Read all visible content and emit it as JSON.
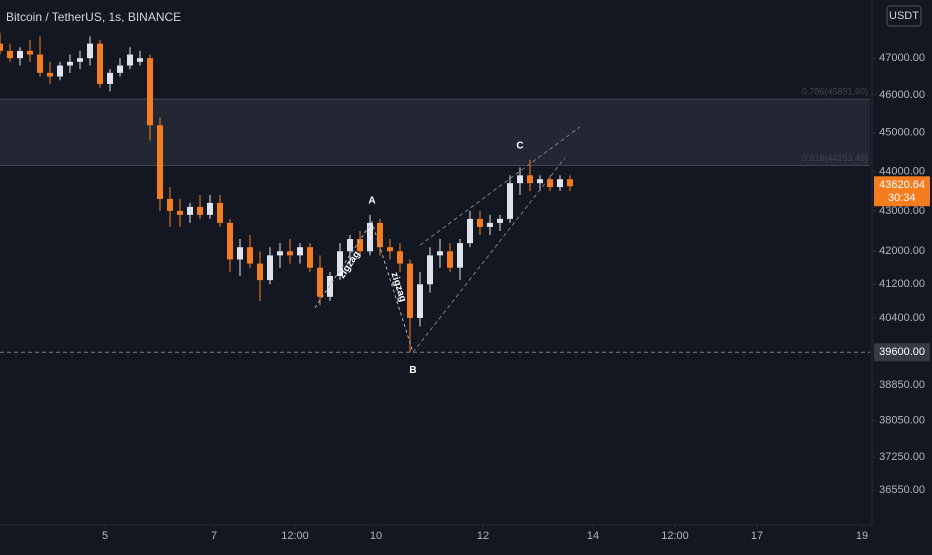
{
  "chart_data": {
    "type": "candlestick",
    "title": "Bitcoin / TetherUS, 1s, BINANCE",
    "currency": "USDT",
    "log_scale": true,
    "up_color": "#e0e3eb",
    "down_color": "#f57c1f",
    "x": [
      0,
      1,
      2,
      3,
      4,
      5,
      6,
      7,
      8,
      9,
      10,
      11,
      12,
      13,
      14,
      15,
      16,
      17,
      18,
      19,
      20,
      21,
      22,
      23,
      24,
      25,
      26,
      27,
      28,
      29,
      30,
      31,
      32,
      33,
      34,
      35,
      36,
      37,
      38,
      39,
      40,
      41,
      42,
      43,
      44,
      45,
      46,
      47,
      48,
      49,
      50,
      51,
      52,
      53,
      54,
      55,
      56,
      57
    ],
    "open": [
      47400,
      47200,
      47000,
      47200,
      47100,
      46600,
      46500,
      46800,
      46900,
      47000,
      47400,
      46300,
      46600,
      46800,
      46900,
      47000,
      45200,
      43300,
      43000,
      42900,
      43100,
      42900,
      43200,
      42700,
      41800,
      42100,
      41700,
      41300,
      41900,
      42000,
      41900,
      42100,
      41600,
      40900,
      41400,
      42000,
      42300,
      42000,
      42700,
      42100,
      42000,
      41700,
      40400,
      41200,
      41900,
      42000,
      41600,
      42200,
      42800,
      42600,
      42700,
      42800,
      43700,
      43900,
      43700,
      43800,
      43600,
      43800
    ],
    "high": [
      47700,
      47400,
      47300,
      47500,
      47600,
      46900,
      46900,
      47100,
      47200,
      47600,
      47500,
      46700,
      47000,
      47300,
      47200,
      47100,
      45400,
      43600,
      43300,
      43200,
      43400,
      43400,
      43400,
      42800,
      42300,
      42400,
      42000,
      42100,
      42200,
      42300,
      42200,
      42200,
      41900,
      41500,
      42200,
      42400,
      42500,
      42900,
      42800,
      42300,
      42200,
      41800,
      41500,
      42100,
      42300,
      42200,
      42300,
      43000,
      43000,
      42900,
      42900,
      43900,
      44100,
      44300,
      43900,
      43900,
      43900,
      43900
    ],
    "low": [
      47100,
      46900,
      46800,
      46900,
      46500,
      46300,
      46400,
      46600,
      46700,
      46800,
      46200,
      46100,
      46500,
      46700,
      46800,
      44800,
      43000,
      42600,
      42600,
      42700,
      42800,
      42800,
      42600,
      41500,
      41400,
      41600,
      40800,
      41200,
      41600,
      41700,
      41700,
      41500,
      40700,
      40800,
      41300,
      41700,
      41900,
      41900,
      41900,
      41800,
      41500,
      39600,
      40200,
      41000,
      41600,
      41500,
      41300,
      42100,
      42400,
      42400,
      42500,
      42700,
      43400,
      43500,
      43500,
      43500,
      43500,
      43500
    ],
    "close": [
      47200,
      47000,
      47200,
      47100,
      46600,
      46500,
      46800,
      46900,
      47000,
      47400,
      46300,
      46600,
      46800,
      47100,
      47000,
      45200,
      43300,
      43000,
      42900,
      43100,
      42900,
      43200,
      42700,
      41800,
      42100,
      41700,
      41300,
      41900,
      42000,
      41900,
      42100,
      41600,
      40900,
      41400,
      42000,
      42300,
      42000,
      42700,
      42100,
      42000,
      41700,
      40400,
      41200,
      41900,
      42000,
      41600,
      42200,
      42800,
      42600,
      42700,
      42800,
      43700,
      43900,
      43700,
      43800,
      43600,
      43800,
      43620
    ],
    "xlim": [
      0,
      87
    ],
    "xticks": [
      {
        "value": 10.5,
        "label": "5"
      },
      {
        "value": 21.4,
        "label": "7"
      },
      {
        "value": 29.5,
        "label": "12:00"
      },
      {
        "value": 37.6,
        "label": "10"
      },
      {
        "value": 48.3,
        "label": "12"
      },
      {
        "value": 59.3,
        "label": "14"
      },
      {
        "value": 67.5,
        "label": "12:00"
      },
      {
        "value": 75.7,
        "label": "17"
      },
      {
        "value": 86.2,
        "label": "19"
      }
    ],
    "ylim": [
      35810,
      48620
    ],
    "yticks": [
      {
        "value": 47000,
        "label": "47000.00"
      },
      {
        "value": 46000,
        "label": "46000.00"
      },
      {
        "value": 45000,
        "label": "45000.00"
      },
      {
        "value": 44000,
        "label": "44000.00"
      },
      {
        "value": 43000,
        "label": "43000.00"
      },
      {
        "value": 42000,
        "label": "42000.00"
      },
      {
        "value": 41200,
        "label": "41200.00"
      },
      {
        "value": 40400,
        "label": "40400.00"
      },
      {
        "value": 38850,
        "label": "38850.00"
      },
      {
        "value": 38050,
        "label": "38050.00"
      },
      {
        "value": 37250,
        "label": "37250.00"
      },
      {
        "value": 36550,
        "label": "36550.00"
      }
    ],
    "last_price": 43620.64,
    "countdown": "30:34",
    "hline": {
      "value": 39600,
      "label": "39600.00"
    },
    "fib_zone": [
      {
        "value": 45891.6,
        "label": "0.786(45891.60)"
      },
      {
        "value": 44153.49,
        "label": "0.618(44153.49)"
      }
    ],
    "pivots": {
      "labels": [
        "A",
        "B",
        "C"
      ],
      "x": [
        37.2,
        41.3,
        52
      ],
      "y": [
        42900,
        39600,
        44300
      ]
    },
    "zigzag": {
      "label": "zigzag",
      "x": [
        31.5,
        37.2,
        41.3
      ],
      "y": [
        40640,
        42724,
        39600
      ]
    },
    "channel": [
      {
        "x": [
          41.3,
          56.5
        ],
        "y": [
          39600,
          44350
        ]
      },
      {
        "x": [
          42,
          58
        ],
        "y": [
          42150,
          45156
        ]
      }
    ]
  }
}
